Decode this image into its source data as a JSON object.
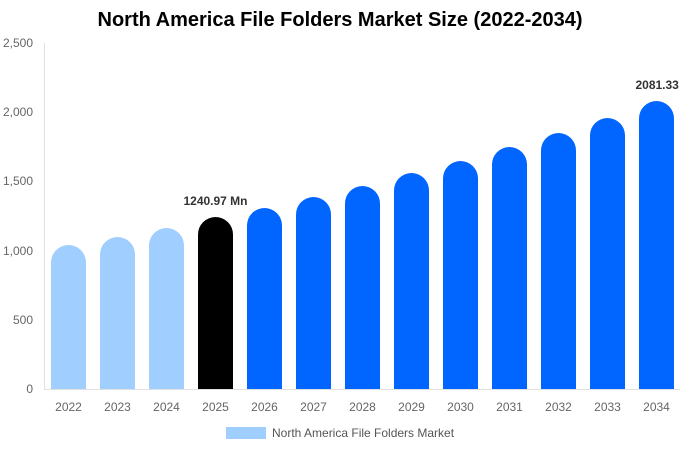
{
  "chart_data": {
    "type": "bar",
    "title": "North America File Folders Market Size (2022-2034)",
    "xlabel": "",
    "ylabel": "",
    "ylim": [
      0,
      2500
    ],
    "yticks": [
      "0",
      "500",
      "1,000",
      "1,500",
      "2,000",
      "2,500"
    ],
    "grid": false,
    "legend_position": "bottom",
    "categories": [
      "2022",
      "2023",
      "2024",
      "2025",
      "2026",
      "2027",
      "2028",
      "2029",
      "2030",
      "2031",
      "2032",
      "2033",
      "2034"
    ],
    "series": [
      {
        "name": "North America File Folders Market",
        "values": [
          1040,
          1098,
          1163,
          1240.97,
          1308,
          1387,
          1467,
          1561,
          1647,
          1749,
          1850,
          1958,
          2081.33
        ]
      }
    ],
    "bar_colors": [
      "#a0cfff",
      "#a0cfff",
      "#a0cfff",
      "#000000",
      "#0066ff",
      "#0066ff",
      "#0066ff",
      "#0066ff",
      "#0066ff",
      "#0066ff",
      "#0066ff",
      "#0066ff",
      "#0066ff"
    ],
    "annotations": [
      {
        "category": "2025",
        "label": "1240.97 Mn"
      },
      {
        "category": "2034",
        "label": "2081.33 Mn"
      }
    ]
  },
  "legend": {
    "label": "North America File Folders Market",
    "color": "#a0cfff"
  }
}
